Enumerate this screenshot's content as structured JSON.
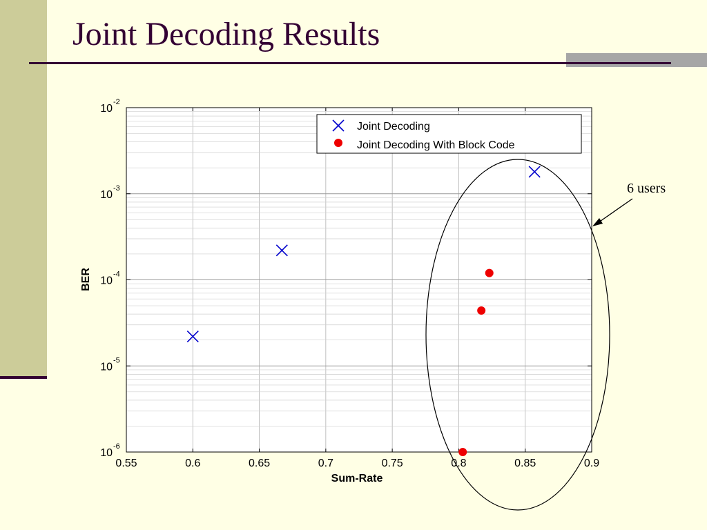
{
  "slide": {
    "title": "Joint Decoding Results",
    "annotation": "6 users"
  },
  "colors": {
    "background": "#ffffe5",
    "sidebar": "#cccc99",
    "title": "#330033",
    "accent_bar": "#a6a6a6",
    "joint_decoding": "#0000cc",
    "block_code": "#ee0000"
  },
  "chart_data": {
    "type": "scatter",
    "title": "",
    "xlabel": "Sum-Rate",
    "ylabel": "BER",
    "xlim": [
      0.55,
      0.9
    ],
    "ylim": [
      1e-06,
      0.01
    ],
    "yscale": "log",
    "grid": true,
    "legend_position": "top-right",
    "x_ticks": [
      0.55,
      0.6,
      0.65,
      0.7,
      0.75,
      0.8,
      0.85,
      0.9
    ],
    "x_tick_labels": [
      "0.55",
      "0.6",
      "0.65",
      "0.7",
      "0.75",
      "0.8",
      "0.85",
      "0.9"
    ],
    "y_ticks": [
      1e-06,
      1e-05,
      0.0001,
      0.001,
      0.01
    ],
    "y_tick_bases": [
      "10",
      "10",
      "10",
      "10",
      "10"
    ],
    "y_tick_exponents": [
      "-6",
      "-5",
      "-4",
      "-3",
      "-2"
    ],
    "series": [
      {
        "name": "Joint Decoding",
        "marker": "x",
        "color": "#0000cc",
        "points": [
          {
            "x": 0.6,
            "y": 2.2e-05
          },
          {
            "x": 0.667,
            "y": 0.00022
          },
          {
            "x": 0.857,
            "y": 0.0018
          }
        ]
      },
      {
        "name": "Joint Decoding With Block Code",
        "marker": "dot",
        "color": "#ee0000",
        "points": [
          {
            "x": 0.803,
            "y": 1e-06
          },
          {
            "x": 0.817,
            "y": 4.4e-05
          },
          {
            "x": 0.823,
            "y": 0.00012
          }
        ]
      }
    ]
  }
}
